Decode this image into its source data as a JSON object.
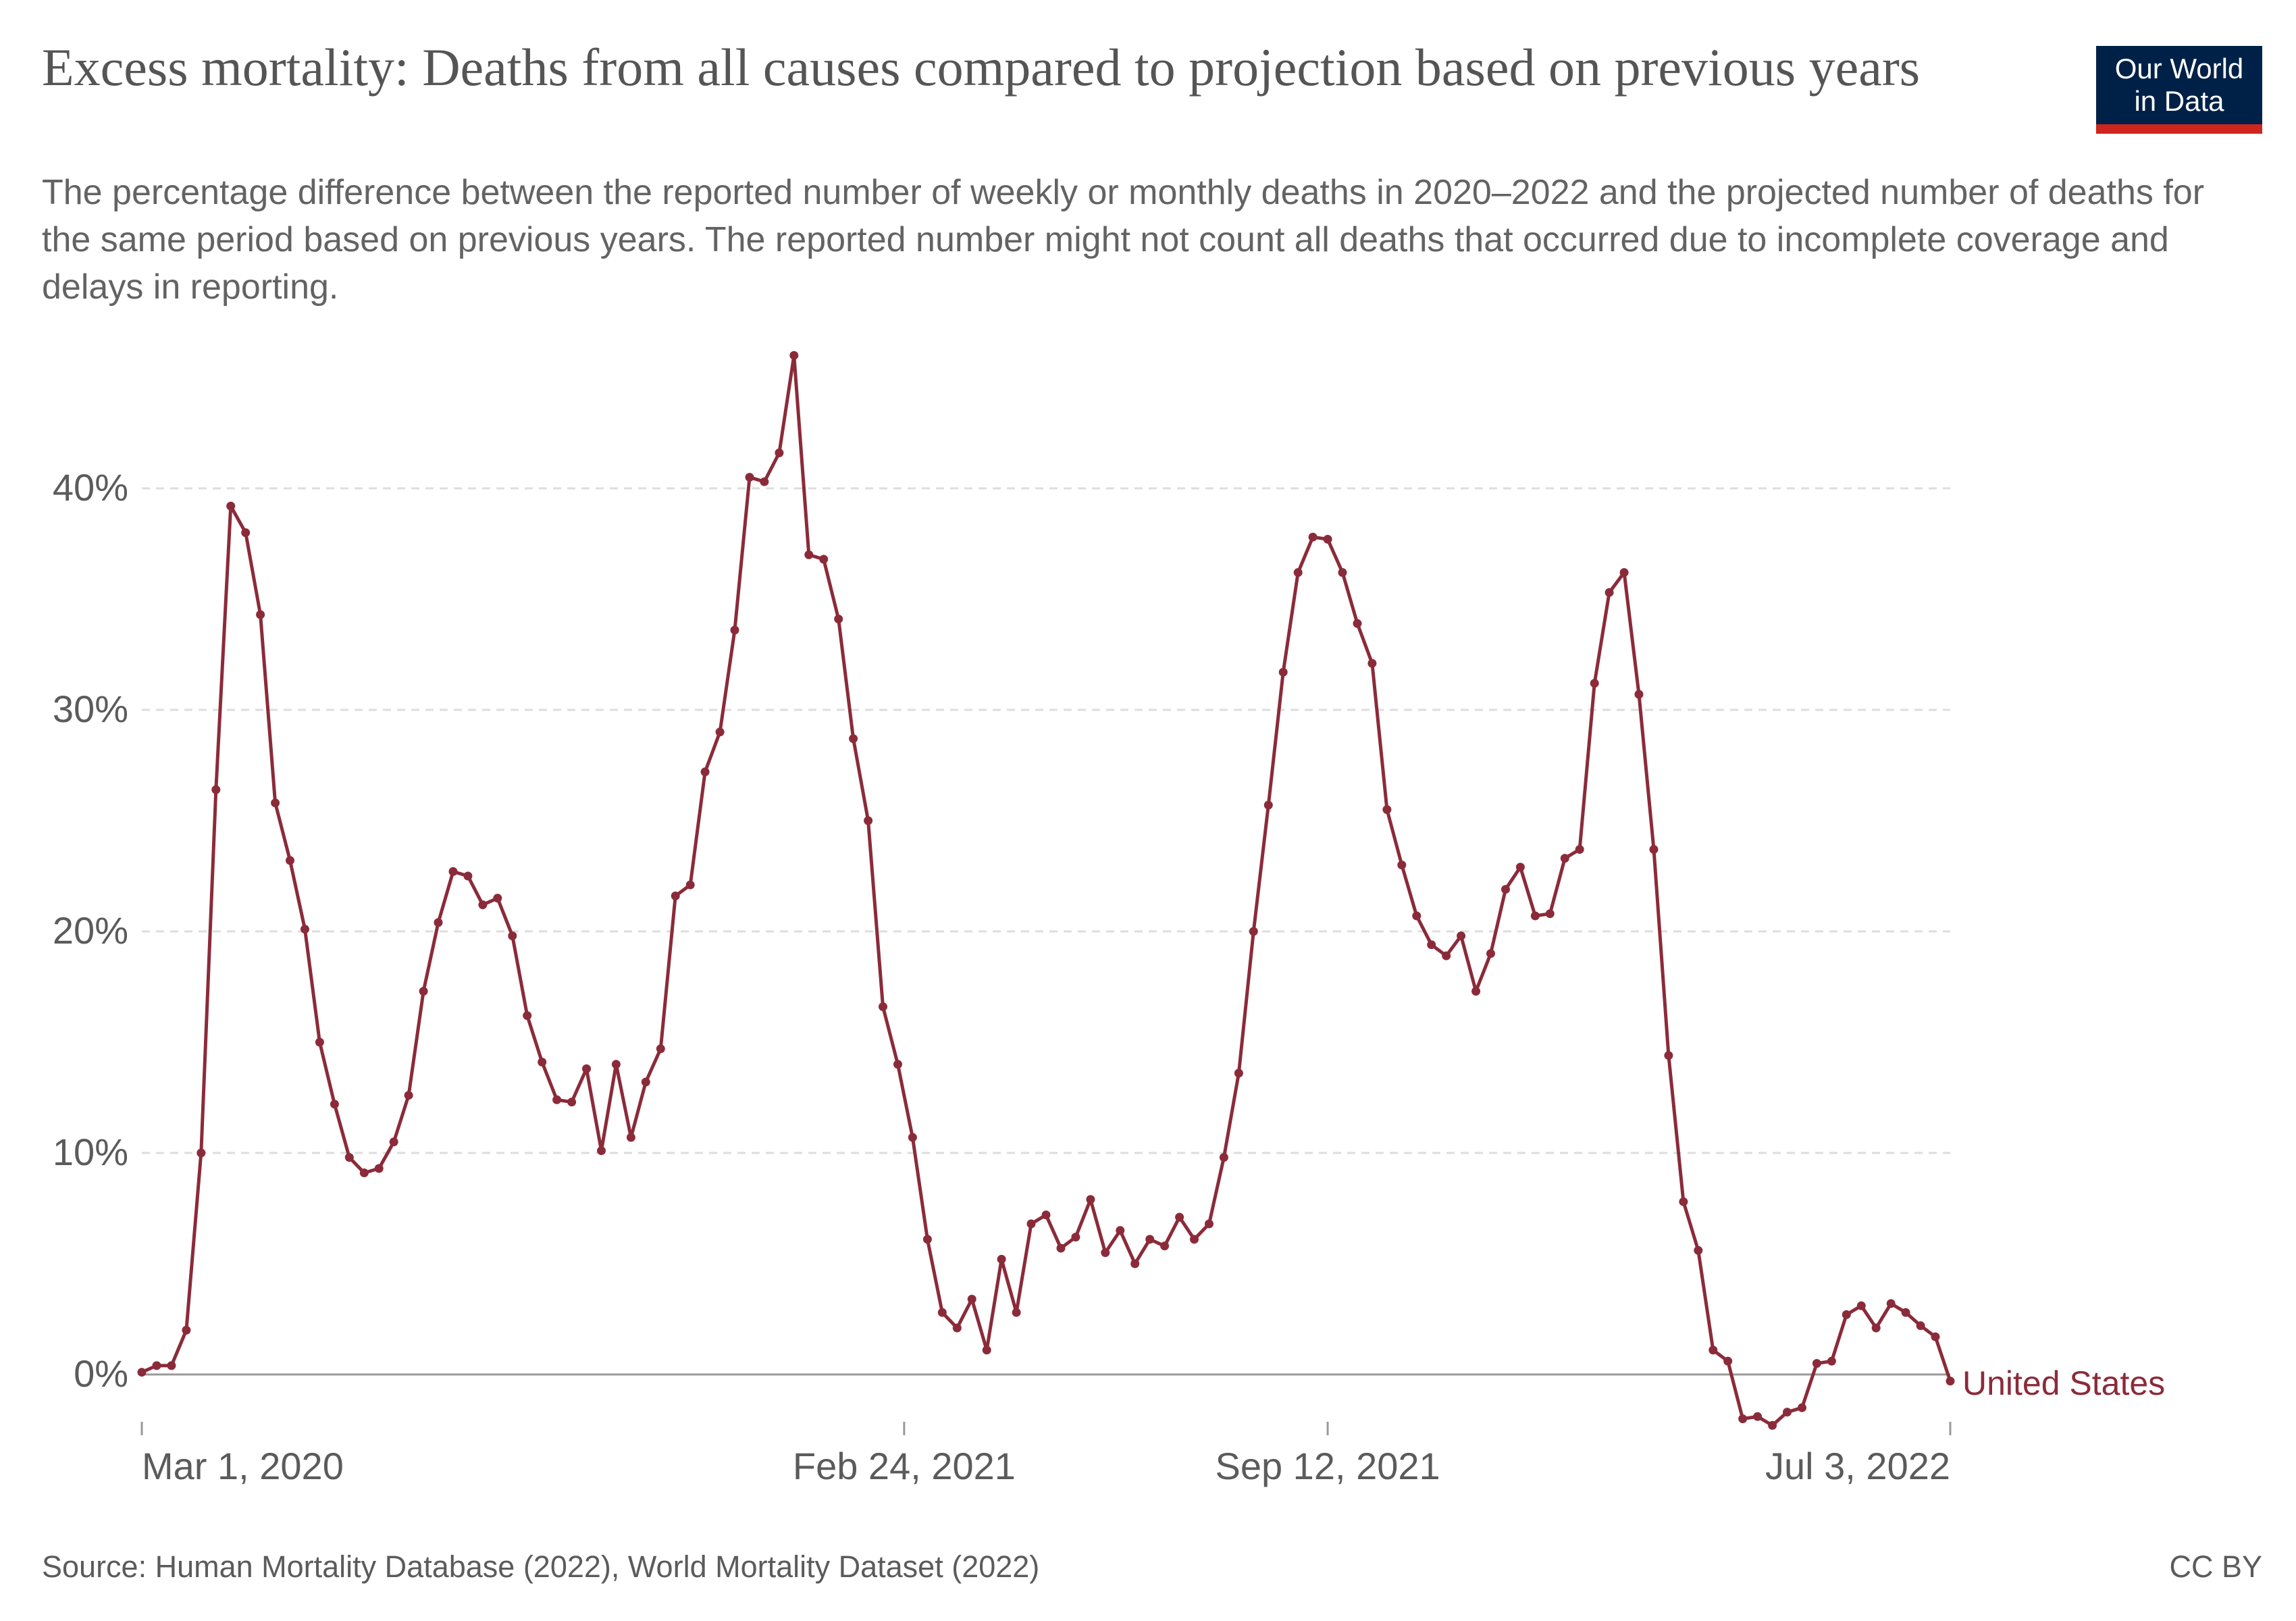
{
  "header": {
    "title": "Excess mortality: Deaths from all causes compared to projection based on previous years",
    "subtitle": "The percentage difference between the reported number of weekly or monthly deaths in 2020–2022 and the projected number of deaths for the same period based on previous years. The reported number might not count all deaths that occurred due to incomplete coverage and delays in reporting.",
    "logo_line1": "Our World",
    "logo_line2": "in Data"
  },
  "footer": {
    "source": "Source: Human Mortality Database (2022), World Mortality Dataset (2022)",
    "license": "CC BY"
  },
  "colors": {
    "series": "#8b2b3a",
    "grid": "#dddddd",
    "zero_line": "#9a9a9a",
    "logo_bg": "#002147",
    "logo_accent": "#ce261e"
  },
  "chart_data": {
    "type": "line",
    "title": "Excess mortality: Deaths from all causes compared to projection based on previous years",
    "xlabel": "",
    "ylabel": "",
    "x_tick_labels": [
      "Mar 1, 2020",
      "Feb 24, 2021",
      "Sep 12, 2021",
      "Jul 3, 2022"
    ],
    "y_ticks": [
      0,
      10,
      20,
      30,
      40
    ],
    "y_tick_labels": [
      "0%",
      "10%",
      "20%",
      "30%",
      "40%"
    ],
    "ylim": [
      -2.3,
      46
    ],
    "grid": true,
    "legend": "inline label at end of line",
    "x_start": "2020-03-01",
    "x_end": "2022-07-03",
    "x_interval": "weekly",
    "series": [
      {
        "name": "United States",
        "values": [
          0.1,
          0.4,
          0.4,
          2.0,
          10.0,
          26.4,
          39.2,
          38.0,
          34.3,
          25.8,
          23.2,
          20.1,
          15.0,
          12.2,
          9.8,
          9.1,
          9.3,
          10.5,
          12.6,
          17.3,
          20.4,
          22.7,
          22.5,
          21.2,
          21.5,
          19.8,
          16.2,
          14.1,
          12.4,
          12.3,
          13.8,
          10.1,
          14.0,
          10.7,
          13.2,
          14.7,
          21.6,
          22.1,
          27.2,
          29.0,
          33.6,
          40.5,
          40.3,
          41.6,
          46.0,
          37.0,
          36.8,
          34.1,
          28.7,
          25.0,
          16.6,
          14.0,
          10.7,
          6.1,
          2.8,
          2.1,
          3.4,
          1.1,
          5.2,
          2.8,
          6.8,
          7.2,
          5.7,
          6.2,
          7.9,
          5.5,
          6.5,
          5.0,
          6.1,
          5.8,
          7.1,
          6.1,
          6.8,
          9.8,
          13.6,
          20.0,
          25.7,
          31.7,
          36.2,
          37.8,
          37.7,
          36.2,
          33.9,
          32.1,
          25.5,
          23.0,
          20.7,
          19.4,
          18.9,
          19.8,
          17.3,
          19.0,
          21.9,
          22.9,
          20.7,
          20.8,
          23.3,
          23.7,
          31.2,
          35.3,
          36.2,
          30.7,
          23.7,
          14.4,
          7.8,
          5.6,
          1.1,
          0.6,
          -2.0,
          -1.9,
          -2.3,
          -1.7,
          -1.5,
          0.5,
          0.6,
          2.7,
          3.1,
          2.1,
          3.2,
          2.8,
          2.2,
          1.7,
          -0.3
        ]
      }
    ]
  }
}
